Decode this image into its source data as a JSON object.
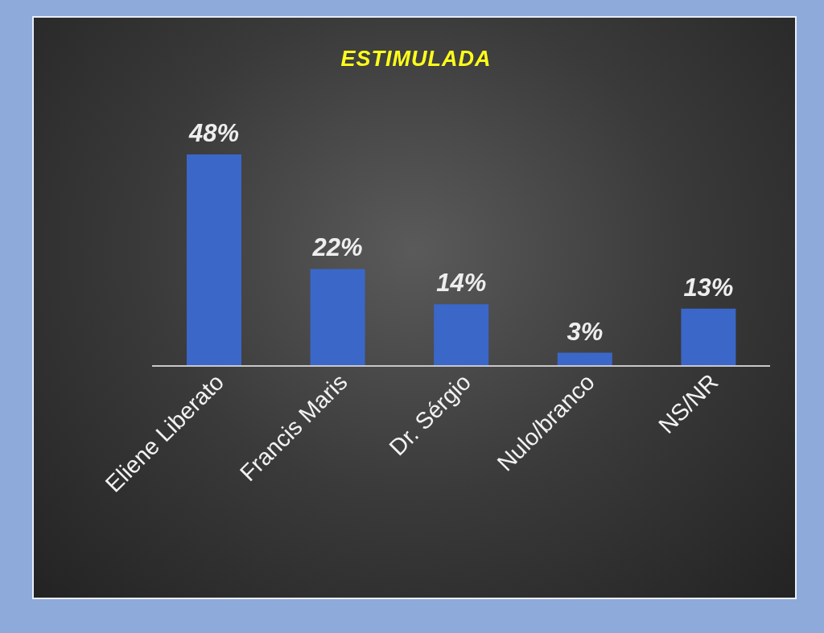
{
  "chart_data": {
    "type": "bar",
    "title": "ESTIMULADA",
    "categories": [
      "Eliene Liberato",
      "Francis Maris",
      "Dr. Sérgio",
      "Nulo/branco",
      "NS/NR"
    ],
    "values": [
      48,
      22,
      14,
      3,
      13
    ],
    "value_labels": [
      "48%",
      "22%",
      "14%",
      "3%",
      "13%"
    ],
    "color": "#3b67c9",
    "grid": false,
    "legend": false
  }
}
